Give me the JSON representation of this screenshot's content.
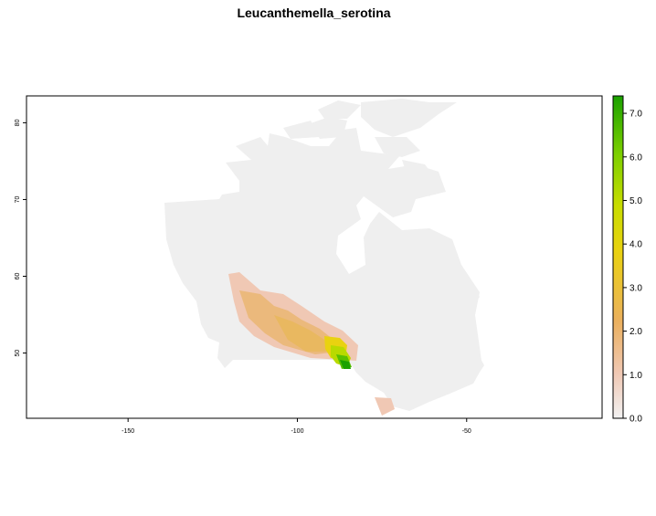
{
  "title": "Leucanthemella_serotina",
  "map": {
    "x_ticks": [
      "-150",
      "-100",
      "-50"
    ],
    "y_ticks": [
      "50",
      "60",
      "70",
      "80"
    ],
    "x_range": [
      -180,
      -10
    ],
    "y_range": [
      41.5,
      83.5
    ],
    "background_color": "#efefef"
  },
  "legend": {
    "ticks": [
      "0.0",
      "1.0",
      "2.0",
      "3.0",
      "4.0",
      "5.0",
      "6.0",
      "7.0"
    ],
    "range": [
      0,
      7.4
    ],
    "colors": [
      "#f2f2f2",
      "#f0c8b4",
      "#ebb05e",
      "#e9d210",
      "#c8dd00",
      "#7ccf00",
      "#1aa100"
    ]
  }
}
